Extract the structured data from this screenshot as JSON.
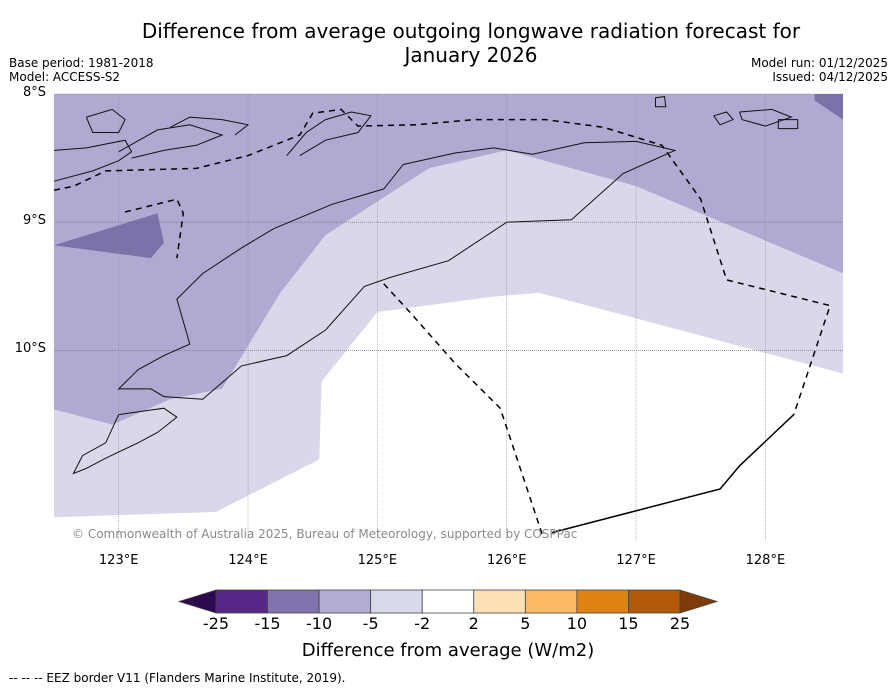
{
  "header": {
    "title_line1": "Difference from average outgoing longwave radiation forecast for",
    "title_line2": "January 2026",
    "base_period": "Base period: 1981-2018",
    "model": "Model: ACCESS-S2",
    "model_run": "Model run: 01/12/2025",
    "issued": "Issued: 04/12/2025"
  },
  "map": {
    "extent": {
      "lon_min": 122.5,
      "lon_max": 128.6,
      "lat_north": -8.0,
      "lat_south": -11.4
    },
    "lat_ticks": [
      {
        "value": -8,
        "label": "8°S"
      },
      {
        "value": -9,
        "label": "9°S"
      },
      {
        "value": -10,
        "label": "10°S"
      }
    ],
    "lon_ticks": [
      {
        "value": 123,
        "label": "123°E"
      },
      {
        "value": 124,
        "label": "124°E"
      },
      {
        "value": 125,
        "label": "125°E"
      },
      {
        "value": 126,
        "label": "126°E"
      },
      {
        "value": 127,
        "label": "127°E"
      },
      {
        "value": 128,
        "label": "128°E"
      }
    ],
    "copyright": "© Commonwealth of Australia 2025, Bureau of Meteorology, supported by COSPPac",
    "regions": [
      {
        "name": "anomaly-neg10-neg5",
        "color": "#b0aad2",
        "poly": [
          [
            122.5,
            -8.0
          ],
          [
            128.6,
            -8.0
          ],
          [
            128.6,
            -9.4
          ],
          [
            127.0,
            -8.72
          ],
          [
            126.0,
            -8.44
          ],
          [
            125.4,
            -8.58
          ],
          [
            124.6,
            -9.1
          ],
          [
            124.25,
            -9.55
          ],
          [
            123.8,
            -10.3
          ],
          [
            123.4,
            -10.38
          ],
          [
            122.95,
            -10.58
          ],
          [
            122.5,
            -10.46
          ]
        ]
      },
      {
        "name": "anomaly-neg15-neg10",
        "color": "#7d71aa",
        "poly": [
          [
            122.5,
            -9.18
          ],
          [
            123.3,
            -8.93
          ],
          [
            123.35,
            -9.16
          ],
          [
            123.25,
            -9.28
          ],
          [
            122.5,
            -9.18
          ]
        ]
      },
      {
        "name": "anomaly-neg15-neg10-ne",
        "color": "#7d71aa",
        "poly": [
          [
            128.38,
            -8.0
          ],
          [
            128.6,
            -8.0
          ],
          [
            128.6,
            -8.2
          ],
          [
            128.38,
            -8.05
          ]
        ]
      },
      {
        "name": "anomaly-neg5-neg2",
        "color": "#d8d8ea",
        "poly": [
          [
            122.5,
            -10.46
          ],
          [
            122.95,
            -10.58
          ],
          [
            123.4,
            -10.38
          ],
          [
            123.8,
            -10.3
          ],
          [
            124.25,
            -9.55
          ],
          [
            124.6,
            -9.1
          ],
          [
            125.4,
            -8.58
          ],
          [
            126.0,
            -8.44
          ],
          [
            127.0,
            -8.72
          ],
          [
            128.6,
            -9.4
          ],
          [
            128.6,
            -10.18
          ],
          [
            127.0,
            -9.75
          ],
          [
            126.25,
            -9.55
          ],
          [
            125.9,
            -9.58
          ],
          [
            125.0,
            -9.7
          ],
          [
            124.57,
            -10.24
          ],
          [
            124.55,
            -10.85
          ],
          [
            123.75,
            -11.26
          ],
          [
            122.5,
            -11.3
          ]
        ]
      }
    ],
    "coastlines": [
      [
        [
          122.5,
          -8.68
        ],
        [
          122.8,
          -8.6
        ],
        [
          123.0,
          -8.52
        ],
        [
          123.1,
          -8.45
        ],
        [
          123.05,
          -8.36
        ],
        [
          122.75,
          -8.42
        ],
        [
          122.5,
          -8.44
        ]
      ],
      [
        [
          122.75,
          -8.18
        ],
        [
          122.95,
          -8.12
        ],
        [
          123.05,
          -8.2
        ],
        [
          123.0,
          -8.3
        ],
        [
          122.8,
          -8.3
        ],
        [
          122.75,
          -8.18
        ]
      ],
      [
        [
          123.0,
          -8.45
        ],
        [
          123.3,
          -8.28
        ],
        [
          123.55,
          -8.24
        ],
        [
          123.8,
          -8.32
        ],
        [
          123.6,
          -8.4
        ],
        [
          123.35,
          -8.44
        ],
        [
          123.1,
          -8.5
        ]
      ],
      [
        [
          123.4,
          -8.26
        ],
        [
          123.55,
          -8.18
        ],
        [
          123.8,
          -8.2
        ],
        [
          124.0,
          -8.24
        ],
        [
          123.9,
          -8.32
        ]
      ],
      [
        [
          124.3,
          -8.48
        ],
        [
          124.45,
          -8.3
        ],
        [
          124.6,
          -8.2
        ],
        [
          124.8,
          -8.14
        ],
        [
          124.95,
          -8.17
        ],
        [
          124.85,
          -8.3
        ],
        [
          124.6,
          -8.36
        ],
        [
          124.4,
          -8.48
        ]
      ],
      [
        [
          125.2,
          -8.55
        ],
        [
          125.6,
          -8.46
        ],
        [
          125.9,
          -8.42
        ],
        [
          126.2,
          -8.47
        ],
        [
          126.6,
          -8.38
        ],
        [
          127.0,
          -8.37
        ],
        [
          127.3,
          -8.44
        ],
        [
          127.1,
          -8.53
        ],
        [
          126.9,
          -8.62
        ],
        [
          126.5,
          -8.98
        ],
        [
          126.0,
          -9.0
        ],
        [
          125.55,
          -9.3
        ],
        [
          125.1,
          -9.43
        ],
        [
          124.9,
          -9.5
        ],
        [
          124.6,
          -9.84
        ],
        [
          124.3,
          -10.04
        ],
        [
          123.95,
          -10.12
        ],
        [
          123.65,
          -10.38
        ],
        [
          123.35,
          -10.36
        ],
        [
          123.25,
          -10.3
        ],
        [
          123.0,
          -10.3
        ],
        [
          123.15,
          -10.15
        ],
        [
          123.35,
          -10.04
        ],
        [
          123.55,
          -9.95
        ],
        [
          123.45,
          -9.6
        ],
        [
          123.65,
          -9.4
        ],
        [
          123.95,
          -9.2
        ],
        [
          124.2,
          -9.05
        ],
        [
          124.65,
          -8.86
        ],
        [
          125.05,
          -8.74
        ],
        [
          125.2,
          -8.55
        ]
      ],
      [
        [
          123.0,
          -10.5
        ],
        [
          123.35,
          -10.45
        ],
        [
          123.45,
          -10.52
        ],
        [
          123.3,
          -10.64
        ],
        [
          123.15,
          -10.72
        ],
        [
          122.9,
          -10.84
        ],
        [
          122.75,
          -10.92
        ],
        [
          122.65,
          -10.96
        ],
        [
          122.72,
          -10.82
        ],
        [
          122.9,
          -10.72
        ],
        [
          123.0,
          -10.5
        ]
      ],
      [
        [
          127.8,
          -8.14
        ],
        [
          128.05,
          -8.12
        ],
        [
          128.2,
          -8.18
        ],
        [
          128.0,
          -8.25
        ],
        [
          127.82,
          -8.2
        ],
        [
          127.8,
          -8.14
        ]
      ],
      [
        [
          128.1,
          -8.2
        ],
        [
          128.25,
          -8.2
        ],
        [
          128.25,
          -8.27
        ],
        [
          128.1,
          -8.27
        ],
        [
          128.1,
          -8.2
        ]
      ],
      [
        [
          127.6,
          -8.17
        ],
        [
          127.7,
          -8.14
        ],
        [
          127.75,
          -8.2
        ],
        [
          127.65,
          -8.24
        ],
        [
          127.6,
          -8.17
        ]
      ],
      [
        [
          127.15,
          -8.03
        ],
        [
          127.22,
          -8.02
        ],
        [
          127.23,
          -8.1
        ],
        [
          127.15,
          -8.1
        ],
        [
          127.15,
          -8.03
        ]
      ]
    ],
    "eez_dashed": [
      [
        [
          122.5,
          -8.75
        ],
        [
          122.65,
          -8.72
        ],
        [
          122.9,
          -8.6
        ],
        [
          123.6,
          -8.58
        ],
        [
          124.0,
          -8.48
        ],
        [
          124.4,
          -8.32
        ],
        [
          124.5,
          -8.15
        ],
        [
          124.72,
          -8.12
        ],
        [
          124.85,
          -8.25
        ],
        [
          125.3,
          -8.24
        ],
        [
          125.75,
          -8.2
        ],
        [
          126.3,
          -8.2
        ],
        [
          126.75,
          -8.26
        ],
        [
          127.2,
          -8.4
        ],
        [
          127.5,
          -8.82
        ],
        [
          127.7,
          -9.45
        ],
        [
          128.5,
          -9.65
        ],
        [
          128.22,
          -10.5
        ]
      ],
      [
        [
          123.05,
          -8.92
        ],
        [
          123.45,
          -8.82
        ],
        [
          123.5,
          -8.93
        ],
        [
          123.45,
          -9.28
        ]
      ],
      [
        [
          125.05,
          -9.48
        ],
        [
          125.25,
          -9.7
        ],
        [
          125.6,
          -10.1
        ],
        [
          125.95,
          -10.45
        ],
        [
          126.28,
          -11.45
        ]
      ]
    ],
    "eez_solid": [
      [
        [
          126.35,
          -11.42
        ],
        [
          127.65,
          -11.08
        ],
        [
          127.8,
          -10.9
        ],
        [
          128.22,
          -10.5
        ]
      ]
    ]
  },
  "colorbar": {
    "label": "Difference from average (W/m2)",
    "ticks": [
      "-25",
      "-15",
      "-10",
      "-5",
      "-2",
      "2",
      "5",
      "10",
      "15",
      "25"
    ],
    "under_color": "#2d0a4f",
    "over_color": "#7f3b08",
    "bins": [
      {
        "range": [
          -25,
          -15
        ],
        "color": "#542788"
      },
      {
        "range": [
          -15,
          -10
        ],
        "color": "#8073ac"
      },
      {
        "range": [
          -10,
          -5
        ],
        "color": "#b2abd2"
      },
      {
        "range": [
          -5,
          -2
        ],
        "color": "#d8daeb"
      },
      {
        "range": [
          -2,
          2
        ],
        "color": "#ffffff"
      },
      {
        "range": [
          2,
          5
        ],
        "color": "#fee0b6"
      },
      {
        "range": [
          5,
          10
        ],
        "color": "#fdb863"
      },
      {
        "range": [
          10,
          15
        ],
        "color": "#e08214"
      },
      {
        "range": [
          15,
          25
        ],
        "color": "#b35806"
      }
    ]
  },
  "footnote": "--  --  -- EEZ border V11 (Flanders Marine Institute, 2019)."
}
